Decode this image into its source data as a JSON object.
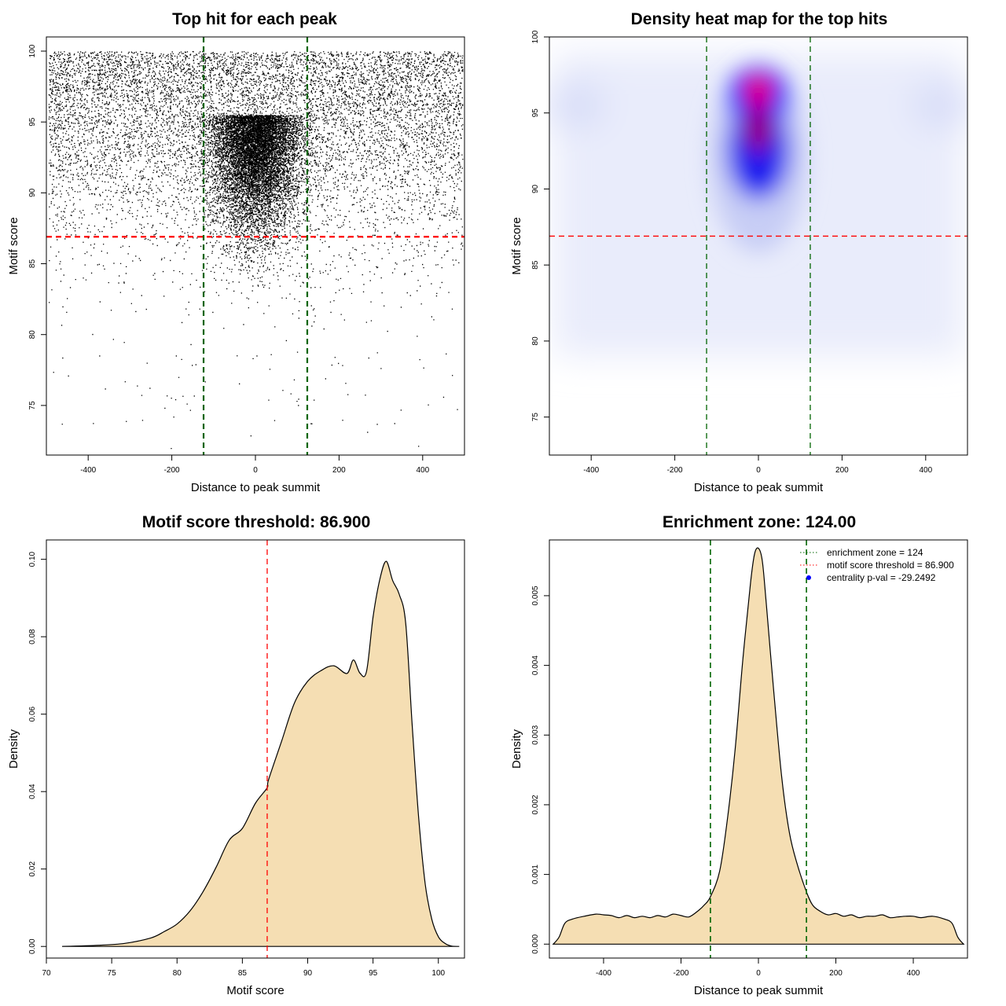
{
  "chart_data": [
    {
      "type": "scatter",
      "title": "Top hit for each peak",
      "xlabel": "Distance to peak summit",
      "ylabel": "Motif score",
      "xlim": [
        -500,
        500
      ],
      "ylim": [
        71.5,
        101
      ],
      "xticks": [
        -400,
        -200,
        0,
        200,
        400
      ],
      "yticks": [
        75,
        80,
        85,
        90,
        95,
        100
      ],
      "hlines": [
        {
          "value": 86.9,
          "color": "#ff0000",
          "style": "dashed"
        }
      ],
      "vlines": [
        {
          "value": -124,
          "color": "#006400",
          "style": "dashed"
        },
        {
          "value": 124,
          "color": "#006400",
          "style": "dashed"
        }
      ],
      "point_color": "#000000",
      "grid": false
    },
    {
      "type": "heatmap",
      "title": "Density heat map for the top hits",
      "xlabel": "Distance to peak summit",
      "ylabel": "Motif score",
      "xlim": [
        -500,
        500
      ],
      "ylim": [
        72.5,
        100
      ],
      "xticks": [
        -400,
        -200,
        0,
        200,
        400
      ],
      "yticks": [
        75,
        80,
        85,
        90,
        95,
        100
      ],
      "colors": [
        "#ffffff",
        "#0000ff",
        "#ff0000"
      ],
      "hlines": [
        {
          "value": 86.9,
          "color": "#ff0000",
          "style": "dashed"
        }
      ],
      "vlines": [
        {
          "value": -124,
          "color": "#006400",
          "style": "dashed"
        },
        {
          "value": 124,
          "color": "#006400",
          "style": "dashed"
        }
      ],
      "grid": false
    },
    {
      "type": "area",
      "title": "Motif score threshold: 86.900",
      "xlabel": "Motif score",
      "ylabel": "Density",
      "xlim": [
        70,
        102
      ],
      "ylim": [
        -0.003,
        0.105
      ],
      "xticks": [
        70,
        75,
        80,
        85,
        90,
        95,
        100
      ],
      "yticks": [
        "0.00",
        "0.02",
        "0.04",
        "0.06",
        "0.08",
        "0.10"
      ],
      "x": [
        71.2,
        74,
        76,
        78,
        79,
        80,
        81,
        82,
        83,
        84,
        85,
        86,
        86.9,
        87,
        88,
        89,
        90,
        91,
        92,
        93,
        93.5,
        94,
        94.5,
        95,
        95.5,
        96,
        96.5,
        97,
        97.5,
        98,
        98.5,
        99,
        99.5,
        100,
        100.5,
        101,
        101.6
      ],
      "y": [
        0.0,
        0.0003,
        0.0008,
        0.0022,
        0.0038,
        0.0058,
        0.0092,
        0.0142,
        0.0205,
        0.0275,
        0.0305,
        0.037,
        0.041,
        0.043,
        0.053,
        0.063,
        0.0685,
        0.0712,
        0.0725,
        0.0705,
        0.074,
        0.0706,
        0.071,
        0.085,
        0.0945,
        0.0995,
        0.0945,
        0.091,
        0.0835,
        0.057,
        0.033,
        0.016,
        0.007,
        0.0025,
        0.0008,
        0.0001,
        0.0
      ],
      "fill": "#f5deb3",
      "vlines": [
        {
          "value": 86.9,
          "color": "#ff0000",
          "style": "dashed"
        }
      ],
      "grid": false
    },
    {
      "type": "area",
      "title": "Enrichment zone: 124.00",
      "xlabel": "Distance to peak summit",
      "ylabel": "Density",
      "xlim": [
        -540,
        540
      ],
      "ylim": [
        -0.0002,
        0.0058
      ],
      "xticks": [
        -400,
        -200,
        0,
        200,
        400
      ],
      "yticks": [
        "0.000",
        "0.001",
        "0.002",
        "0.003",
        "0.004",
        "0.005"
      ],
      "x": [
        -530,
        -515,
        -500,
        -480,
        -450,
        -420,
        -400,
        -380,
        -360,
        -340,
        -320,
        -300,
        -280,
        -260,
        -240,
        -220,
        -200,
        -180,
        -160,
        -140,
        -124,
        -100,
        -80,
        -60,
        -40,
        -20,
        -10,
        0,
        10,
        20,
        40,
        60,
        80,
        100,
        124,
        140,
        160,
        180,
        200,
        220,
        240,
        260,
        280,
        300,
        320,
        340,
        360,
        380,
        400,
        420,
        450,
        480,
        500,
        515,
        530
      ],
      "y": [
        0.0,
        0.0001,
        0.0003,
        0.00036,
        0.0004,
        0.00043,
        0.00042,
        0.00041,
        0.00038,
        0.00041,
        0.00038,
        0.0004,
        0.00038,
        0.00041,
        0.00039,
        0.00043,
        0.00041,
        0.00039,
        0.00046,
        0.00056,
        0.00068,
        0.00105,
        0.0018,
        0.0028,
        0.0041,
        0.0052,
        0.0056,
        0.00568,
        0.0055,
        0.0049,
        0.0036,
        0.0024,
        0.0016,
        0.00115,
        0.00075,
        0.00056,
        0.00047,
        0.00042,
        0.00044,
        0.0004,
        0.00042,
        0.00038,
        0.0004,
        0.0004,
        0.00042,
        0.00038,
        0.00039,
        0.0004,
        0.0004,
        0.00038,
        0.0004,
        0.00036,
        0.0003,
        0.0001,
        0.0
      ],
      "fill": "#f5deb3",
      "vlines": [
        {
          "value": -124,
          "color": "#006400",
          "style": "dashed"
        },
        {
          "value": 124,
          "color": "#006400",
          "style": "dashed"
        }
      ],
      "legend": {
        "position": "top-right",
        "entries": [
          {
            "label": "enrichment zone = 124",
            "color": "#006400",
            "symbol": "dotted-line"
          },
          {
            "label": "motif score threshold = 86.900",
            "color": "#ff0000",
            "symbol": "dotted-line"
          },
          {
            "label": "centrality p-val = -29.2492",
            "color": "#0000ff",
            "symbol": "point"
          }
        ]
      },
      "grid": false
    }
  ]
}
